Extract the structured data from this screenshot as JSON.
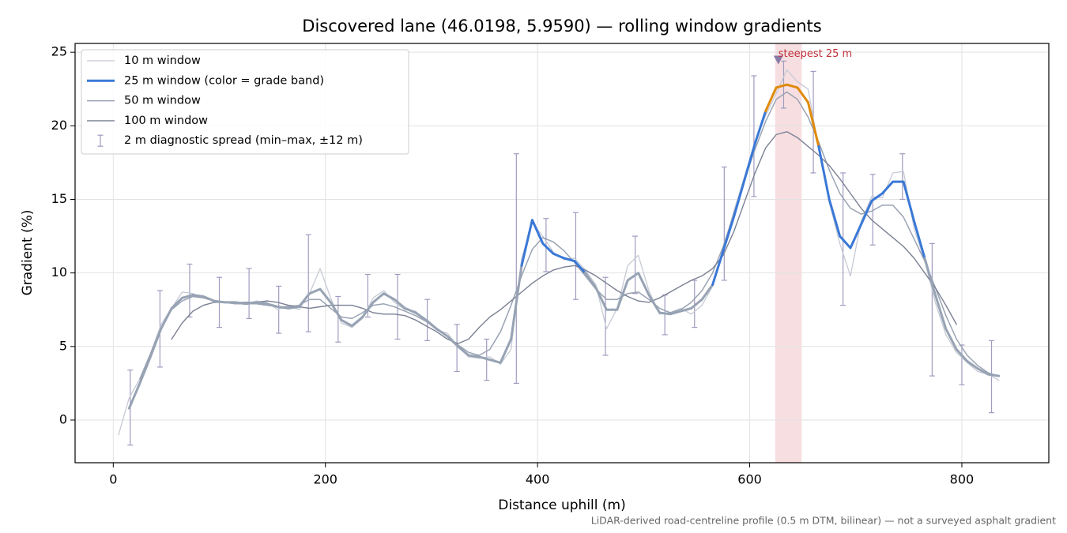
{
  "chart_data": {
    "type": "line",
    "title": "Discovered lane (46.0198, 5.9590) — rolling window gradients",
    "xlabel": "Distance uphill (m)",
    "ylabel": "Gradient (%)",
    "footnote": "LiDAR-derived road-centreline profile (0.5 m DTM, bilinear) — not a surveyed asphalt gradient",
    "xlim": [
      -36,
      882
    ],
    "ylim": [
      -2.9,
      25.6
    ],
    "xticks": [
      0,
      200,
      400,
      600,
      800
    ],
    "yticks": [
      0,
      5,
      10,
      15,
      20,
      25
    ],
    "grid": true,
    "legend": "upper left",
    "x": [
      5,
      15,
      25,
      35,
      45,
      55,
      65,
      75,
      85,
      95,
      105,
      115,
      125,
      135,
      145,
      155,
      165,
      175,
      185,
      195,
      205,
      215,
      225,
      235,
      245,
      255,
      265,
      275,
      285,
      295,
      305,
      315,
      325,
      335,
      345,
      355,
      365,
      375,
      385,
      395,
      405,
      415,
      425,
      435,
      445,
      455,
      465,
      475,
      485,
      495,
      505,
      515,
      525,
      535,
      545,
      555,
      565,
      575,
      585,
      595,
      605,
      615,
      625,
      635,
      645,
      655,
      665,
      675,
      685,
      695,
      705,
      715,
      725,
      735,
      745,
      755,
      765,
      775,
      785,
      795,
      805,
      815,
      825,
      835
    ],
    "series": [
      {
        "name": "10 m window",
        "color": "#c5cad5",
        "width": 1.3,
        "values": [
          -1.0,
          1.5,
          2.8,
          4.5,
          6.5,
          7.6,
          8.7,
          8.6,
          8.3,
          8.1,
          8.0,
          7.9,
          7.9,
          8.1,
          8.0,
          7.5,
          7.8,
          7.5,
          8.6,
          10.3,
          8.3,
          6.6,
          6.3,
          6.9,
          8.3,
          8.8,
          8.0,
          7.5,
          7.4,
          6.7,
          6.1,
          5.9,
          5.0,
          4.3,
          4.2,
          4.3,
          3.8,
          4.8,
          11.0,
          13.4,
          12.5,
          11.4,
          10.9,
          11.0,
          10.2,
          9.2,
          6.2,
          7.6,
          10.5,
          11.2,
          8.8,
          7.2,
          7.3,
          7.6,
          7.2,
          7.8,
          9.1,
          11.6,
          14.2,
          16.5,
          18.9,
          20.7,
          22.2,
          23.8,
          23.0,
          22.5,
          18.5,
          14.8,
          12.0,
          9.8,
          13.5,
          15.2,
          15.1,
          16.8,
          16.9,
          13.0,
          10.8,
          8.0,
          5.8,
          4.6,
          3.9,
          3.3,
          3.1,
          2.7
        ]
      },
      {
        "name": "25 m window (color = grade band)",
        "color": "#3a78d6",
        "width": 3,
        "bands": [
          {
            "below": 10,
            "color": "#97a3b4"
          },
          {
            "below": 20,
            "color": "#3a78d6"
          },
          {
            "color": "#e08a0b"
          }
        ],
        "values": [
          null,
          0.8,
          2.5,
          4.3,
          6.2,
          7.6,
          8.3,
          8.5,
          8.4,
          8.1,
          8.0,
          8.0,
          7.9,
          8.0,
          7.9,
          7.7,
          7.6,
          7.7,
          8.6,
          8.9,
          8.0,
          6.8,
          6.4,
          7.0,
          8.0,
          8.6,
          8.2,
          7.6,
          7.3,
          6.8,
          6.2,
          5.7,
          5.0,
          4.4,
          4.3,
          4.1,
          3.9,
          5.5,
          10.5,
          13.6,
          12.0,
          11.3,
          11.0,
          10.8,
          10.0,
          9.0,
          7.5,
          7.5,
          9.5,
          10.0,
          8.5,
          7.3,
          7.2,
          7.4,
          7.6,
          8.2,
          9.2,
          11.5,
          13.8,
          16.3,
          18.8,
          21.0,
          22.6,
          22.8,
          22.6,
          21.6,
          18.6,
          15.0,
          12.5,
          11.7,
          13.3,
          14.9,
          15.4,
          16.2,
          16.2,
          13.5,
          11.0,
          8.5,
          6.2,
          4.8,
          4.0,
          3.5,
          3.1,
          3.0
        ]
      },
      {
        "name": "50 m window",
        "color": "#9aa3b3",
        "width": 1.5,
        "values": [
          null,
          null,
          2.8,
          4.5,
          6.3,
          7.5,
          8.1,
          8.4,
          8.3,
          8.1,
          8.0,
          7.9,
          7.9,
          7.9,
          7.8,
          7.7,
          7.7,
          7.8,
          8.2,
          8.2,
          7.6,
          7.0,
          6.9,
          7.3,
          7.8,
          7.9,
          7.7,
          7.4,
          7.1,
          6.7,
          6.2,
          5.7,
          5.1,
          4.6,
          4.4,
          4.8,
          6.0,
          7.8,
          9.8,
          11.6,
          12.4,
          12.1,
          11.5,
          10.7,
          9.8,
          8.9,
          8.2,
          8.2,
          8.6,
          8.7,
          8.2,
          7.6,
          7.3,
          7.5,
          8.0,
          8.8,
          10.0,
          11.8,
          14.0,
          16.3,
          18.4,
          20.3,
          21.8,
          22.3,
          21.8,
          20.6,
          18.9,
          17.0,
          15.4,
          14.4,
          14.0,
          14.2,
          14.6,
          14.6,
          13.8,
          12.3,
          10.8,
          9.0,
          7.1,
          5.5,
          4.4,
          3.7,
          3.2,
          3.0
        ]
      },
      {
        "name": "100 m window",
        "color": "#7b8194",
        "width": 1.4,
        "values": [
          null,
          null,
          null,
          null,
          null,
          5.5,
          6.6,
          7.4,
          7.8,
          8.0,
          8.0,
          8.0,
          8.0,
          8.0,
          8.1,
          8.0,
          7.8,
          7.7,
          7.6,
          7.7,
          7.8,
          7.8,
          7.8,
          7.6,
          7.3,
          7.2,
          7.2,
          7.1,
          6.8,
          6.4,
          6.0,
          5.5,
          5.2,
          5.5,
          6.3,
          7.0,
          7.5,
          8.1,
          8.7,
          9.3,
          9.8,
          10.2,
          10.4,
          10.5,
          10.2,
          9.8,
          9.3,
          8.8,
          8.4,
          8.1,
          8.0,
          8.3,
          8.7,
          9.1,
          9.5,
          9.8,
          10.3,
          11.2,
          12.8,
          14.8,
          16.8,
          18.5,
          19.4,
          19.6,
          19.2,
          18.6,
          18.0,
          17.3,
          16.4,
          15.4,
          14.4,
          13.6,
          13.0,
          12.4,
          11.8,
          11.0,
          10.0,
          9.0,
          7.8,
          6.5,
          null,
          null,
          null,
          null
        ]
      }
    ],
    "spread": {
      "name": "2 m diagnostic spread (min–max, ±12 m)",
      "color": "#a09bc0",
      "x": [
        16,
        44,
        72,
        100,
        128,
        156,
        184,
        212,
        240,
        268,
        296,
        324,
        352,
        380,
        408,
        436,
        464,
        492,
        520,
        548,
        576,
        604,
        632,
        660,
        688,
        716,
        744,
        772,
        800,
        828
      ],
      "low": [
        -1.7,
        3.6,
        7.0,
        6.3,
        6.9,
        5.9,
        6.0,
        5.3,
        7.0,
        5.5,
        5.4,
        3.3,
        2.7,
        2.5,
        10.1,
        8.2,
        4.4,
        8.6,
        5.8,
        6.3,
        9.5,
        15.2,
        21.2,
        16.8,
        7.8,
        11.9,
        15.0,
        3.0,
        2.4,
        0.5
      ],
      "high": [
        3.4,
        8.8,
        10.6,
        9.7,
        10.3,
        9.1,
        12.6,
        8.4,
        9.9,
        9.9,
        8.2,
        6.5,
        5.5,
        18.1,
        13.7,
        14.1,
        9.7,
        12.5,
        8.5,
        9.5,
        17.2,
        23.4,
        24.4,
        23.7,
        16.8,
        16.7,
        18.1,
        12.0,
        5.1,
        5.4
      ]
    },
    "highlight": {
      "span": [
        624,
        649
      ],
      "color": "#e8a2aa",
      "label": "steepest 25 m",
      "label_color": "#c0303c",
      "marker": [
        627,
        24.5
      ],
      "marker_color": "#8a7aa8"
    }
  }
}
